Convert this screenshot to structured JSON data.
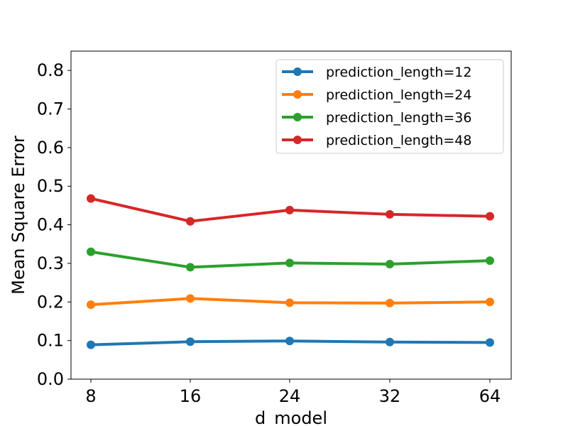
{
  "chart_data": {
    "type": "line",
    "xlabel": "d_model",
    "ylabel": "Mean Square Error",
    "categories": [
      "8",
      "16",
      "24",
      "32",
      "64"
    ],
    "ylim": [
      0.0,
      0.85
    ],
    "yticks": [
      "0.0",
      "0.1",
      "0.2",
      "0.3",
      "0.4",
      "0.5",
      "0.6",
      "0.7",
      "0.8"
    ],
    "grid": false,
    "legend_position": "top-right",
    "series": [
      {
        "name": "prediction_length=12",
        "color": "#1f77b4",
        "values": [
          0.089,
          0.097,
          0.099,
          0.096,
          0.095
        ]
      },
      {
        "name": "prediction_length=24",
        "color": "#ff7f0e",
        "values": [
          0.193,
          0.209,
          0.198,
          0.197,
          0.2
        ]
      },
      {
        "name": "prediction_length=36",
        "color": "#2ca02c",
        "values": [
          0.33,
          0.29,
          0.301,
          0.298,
          0.307
        ]
      },
      {
        "name": "prediction_length=48",
        "color": "#d62728",
        "values": [
          0.468,
          0.409,
          0.438,
          0.427,
          0.422
        ]
      }
    ]
  }
}
